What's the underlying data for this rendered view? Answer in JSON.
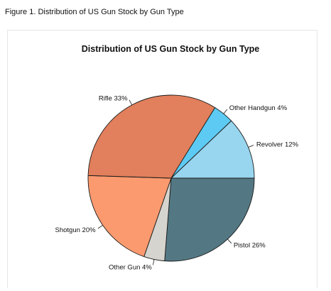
{
  "caption": "Figure 1. Distribution of US Gun Stock by Gun Type",
  "chart_data": {
    "type": "pie",
    "title": "Distribution of US Gun Stock by Gun Type",
    "slices": [
      {
        "label": "Pistol 26%",
        "name": "Pistol",
        "value": 26,
        "color": "#537883"
      },
      {
        "label": "Other Gun 4%",
        "name": "Other Gun",
        "value": 4,
        "color": "#d6d4ce"
      },
      {
        "label": "Shotgun 20%",
        "name": "Shotgun",
        "value": 20,
        "color": "#fb9a6f"
      },
      {
        "label": "Rifle 33%",
        "name": "Rifle",
        "value": 33,
        "color": "#e27f5c"
      },
      {
        "label": "Other Handgun 4%",
        "name": "Other Handgun",
        "value": 4,
        "color": "#5ccaf3"
      },
      {
        "label": "Revolver 12%",
        "name": "Revolver",
        "value": 12,
        "color": "#98d5ef"
      }
    ],
    "start_angle_deg": 0,
    "direction": "clockwise",
    "legend": "none",
    "grid": false
  }
}
